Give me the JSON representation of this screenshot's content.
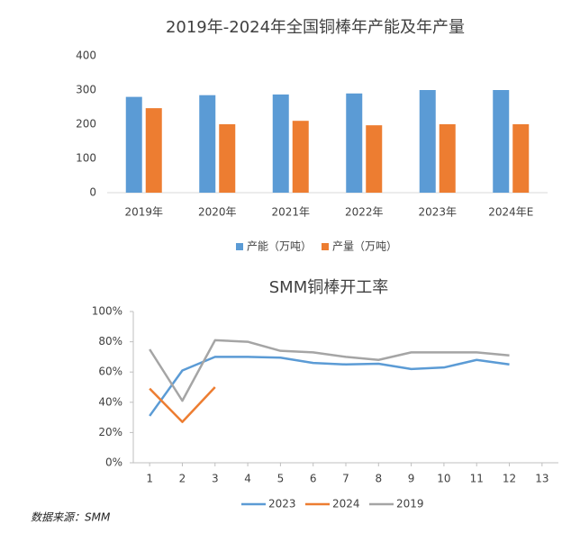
{
  "chart_data": [
    {
      "type": "bar",
      "title": "2019年-2024年全国铜棒年产能及年产量",
      "categories": [
        "2019年",
        "2020年",
        "2021年",
        "2022年",
        "2023年",
        "2024年E"
      ],
      "series": [
        {
          "name": "产能（万吨）",
          "color": "#5b9bd5",
          "values": [
            280,
            285,
            287,
            290,
            300,
            300
          ]
        },
        {
          "name": "产量（万吨）",
          "color": "#ed7d31",
          "values": [
            247,
            200,
            210,
            197,
            200,
            200
          ]
        }
      ],
      "ylim": [
        0,
        400
      ],
      "yticks": [
        0,
        100,
        200,
        300,
        400
      ],
      "grid": false,
      "legend": "bottom"
    },
    {
      "type": "line",
      "title": "SMM铜棒开工率",
      "x": [
        1,
        2,
        3,
        4,
        5,
        6,
        7,
        8,
        9,
        10,
        11,
        12
      ],
      "series": [
        {
          "name": "2023",
          "color": "#5b9bd5",
          "values": [
            31,
            61,
            70,
            70,
            69.5,
            66,
            65,
            65.5,
            62,
            63,
            68,
            65
          ]
        },
        {
          "name": "2024",
          "color": "#ed7d31",
          "values": [
            49,
            27,
            50,
            null,
            null,
            null,
            null,
            null,
            null,
            null,
            null,
            null
          ]
        },
        {
          "name": "2019",
          "color": "#a5a5a5",
          "values": [
            75,
            41,
            81,
            80,
            74,
            73,
            70,
            68,
            73,
            73,
            73,
            71
          ]
        }
      ],
      "xlim": [
        0.5,
        13.5
      ],
      "xticks": [
        1,
        2,
        3,
        4,
        5,
        6,
        7,
        8,
        9,
        10,
        11,
        12,
        13
      ],
      "ylim": [
        0,
        100
      ],
      "yticks": [
        {
          "value": 0,
          "label": "0%"
        },
        {
          "value": 20,
          "label": "20%"
        },
        {
          "value": 40,
          "label": "40%"
        },
        {
          "value": 60,
          "label": "60%"
        },
        {
          "value": 80,
          "label": "80%"
        },
        {
          "value": 100,
          "label": "100%"
        }
      ],
      "grid": false,
      "legend": "bottom"
    }
  ],
  "source": "数据来源：SMM"
}
